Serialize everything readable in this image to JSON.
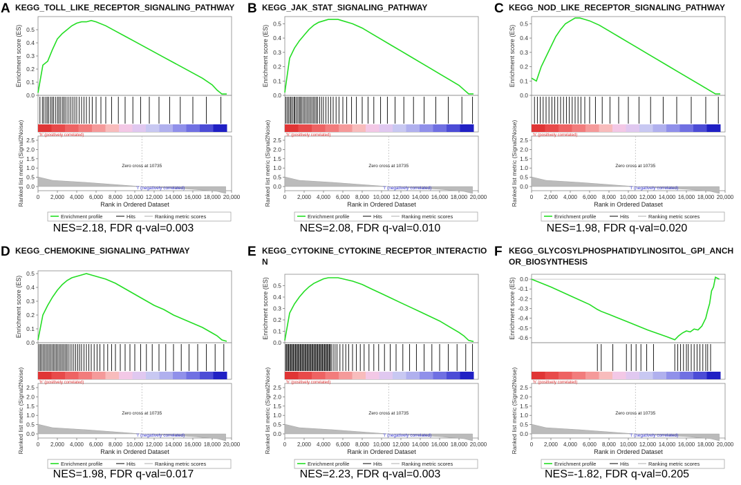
{
  "chart_data": [
    {
      "type": "line",
      "panel_label": "A",
      "title": "KEGG_TOLL_LIKE_RECEPTOR_SIGNALING_PATHWAY",
      "ylabel": "Enrichment score (ES)",
      "ylabel2": "Ranked list metric (Signal2Noise)",
      "xlabel": "Rank in Ordered Dataset",
      "ylim": [
        0.0,
        0.6
      ],
      "yticks": [
        "0.0",
        "0.1",
        "0.2",
        "0.3",
        "0.4",
        "0.5"
      ],
      "x": [
        0,
        500,
        1000,
        1500,
        2000,
        2500,
        3000,
        3500,
        4000,
        4500,
        5000,
        5500,
        6000,
        7000,
        8000,
        9000,
        10000,
        11000,
        12000,
        13000,
        14000,
        15000,
        16000,
        17000,
        18000,
        18500,
        19000,
        19500
      ],
      "es": [
        0.02,
        0.23,
        0.26,
        0.35,
        0.43,
        0.47,
        0.5,
        0.53,
        0.55,
        0.56,
        0.56,
        0.57,
        0.56,
        0.53,
        0.49,
        0.45,
        0.41,
        0.37,
        0.33,
        0.29,
        0.25,
        0.21,
        0.17,
        0.13,
        0.08,
        0.04,
        0.01,
        0.01
      ],
      "hits": [
        200,
        450,
        600,
        800,
        950,
        1100,
        1300,
        1450,
        1600,
        1800,
        2000,
        2150,
        2300,
        2500,
        2650,
        2800,
        3000,
        3200,
        3400,
        3600,
        3800,
        4000,
        4250,
        4500,
        4750,
        5000,
        5300,
        5600,
        6000,
        6500,
        7000,
        7600,
        8300,
        9000,
        9800,
        10600,
        11500,
        12500,
        13600,
        14700,
        16000,
        17400,
        18900
      ],
      "nes_fdr": "NES=2.18, FDR q-val=0.003"
    },
    {
      "type": "line",
      "panel_label": "B",
      "title": "KEGG_JAK_STAT_SIGNALING_PATHWAY",
      "ylabel": "Enrichment score (ES)",
      "ylabel2": "Ranked list metric (Signal2Noise)",
      "xlabel": "Rank in Ordered Dataset",
      "ylim": [
        0.0,
        0.55
      ],
      "yticks": [
        "0.0",
        "0.1",
        "0.2",
        "0.3",
        "0.4",
        "0.5"
      ],
      "x": [
        0,
        500,
        1000,
        1500,
        2000,
        2500,
        3000,
        3500,
        4000,
        4500,
        5000,
        5500,
        6000,
        7000,
        8000,
        9000,
        10000,
        11000,
        12000,
        13000,
        14000,
        15000,
        16000,
        17000,
        18000,
        18500,
        19000,
        19500
      ],
      "es": [
        0.02,
        0.26,
        0.33,
        0.38,
        0.42,
        0.46,
        0.49,
        0.51,
        0.52,
        0.53,
        0.53,
        0.53,
        0.52,
        0.5,
        0.47,
        0.43,
        0.39,
        0.35,
        0.31,
        0.27,
        0.23,
        0.19,
        0.15,
        0.11,
        0.07,
        0.04,
        0.01,
        0.01
      ],
      "hits": [
        100,
        250,
        400,
        550,
        650,
        800,
        950,
        1050,
        1200,
        1350,
        1500,
        1600,
        1750,
        1900,
        2050,
        2200,
        2350,
        2500,
        2650,
        2800,
        2950,
        3100,
        3250,
        3400,
        3600,
        3800,
        4000,
        4250,
        4500,
        4750,
        5000,
        5300,
        5600,
        6000,
        6400,
        6900,
        7400,
        8000,
        8600,
        9200,
        9900,
        10600,
        11400,
        12300,
        13300,
        14400,
        15600,
        16900,
        18300,
        19400
      ],
      "nes_fdr": "NES=2.08, FDR q-val=0.010"
    },
    {
      "type": "line",
      "panel_label": "C",
      "title": "KEGG_NOD_LIKE_RECEPTOR_SIGNALING_PATHWAY",
      "ylabel": "Enrichment score (ES)",
      "ylabel2": "Ranked list metric (Signal2Noise)",
      "xlabel": "Rank in Ordered Dataset",
      "ylim": [
        0.0,
        0.55
      ],
      "yticks": [
        "0.0",
        "0.1",
        "0.2",
        "0.3",
        "0.4",
        "0.5"
      ],
      "x": [
        0,
        500,
        1000,
        1500,
        2000,
        2500,
        3000,
        3500,
        4000,
        4500,
        5000,
        5500,
        6000,
        7000,
        8000,
        9000,
        10000,
        11000,
        12000,
        13000,
        14000,
        15000,
        16000,
        17000,
        18000,
        18500,
        19000,
        19500
      ],
      "es": [
        0.12,
        0.1,
        0.2,
        0.27,
        0.34,
        0.41,
        0.46,
        0.5,
        0.52,
        0.54,
        0.54,
        0.53,
        0.52,
        0.49,
        0.45,
        0.41,
        0.37,
        0.33,
        0.29,
        0.25,
        0.21,
        0.17,
        0.13,
        0.09,
        0.05,
        0.03,
        0.01,
        0.01
      ],
      "hits": [
        300,
        600,
        900,
        1200,
        1500,
        1800,
        2100,
        2400,
        2700,
        3000,
        3300,
        3600,
        3900,
        4200,
        4500,
        4800,
        5100,
        5500,
        6000,
        6600,
        7300,
        8100,
        9000,
        10000,
        11100,
        12300,
        13600,
        15000,
        16500,
        18000,
        19300
      ],
      "nes_fdr": "NES=1.98, FDR q-val=0.020"
    },
    {
      "type": "line",
      "panel_label": "D",
      "title": "KEGG_CHEMOKINE_SIGNALING_PATHWAY",
      "ylabel": "Enrichment score (ES)",
      "ylabel2": "Ranked list metric (Signal2Noise)",
      "xlabel": "Rank in Ordered Dataset",
      "ylim": [
        0.0,
        0.52
      ],
      "yticks": [
        "0.0",
        "0.1",
        "0.2",
        "0.3",
        "0.4",
        "0.5"
      ],
      "x": [
        0,
        500,
        1000,
        1500,
        2000,
        2500,
        3000,
        3500,
        4000,
        4500,
        5000,
        5500,
        6000,
        7000,
        8000,
        9000,
        10000,
        11000,
        12000,
        13000,
        14000,
        15000,
        16000,
        17000,
        18000,
        18500,
        19000,
        19500
      ],
      "es": [
        0.02,
        0.2,
        0.27,
        0.33,
        0.38,
        0.42,
        0.45,
        0.47,
        0.48,
        0.49,
        0.5,
        0.49,
        0.48,
        0.46,
        0.43,
        0.39,
        0.35,
        0.31,
        0.27,
        0.24,
        0.2,
        0.17,
        0.14,
        0.11,
        0.07,
        0.05,
        0.02,
        0.01
      ],
      "hits": [
        100,
        250,
        400,
        550,
        700,
        850,
        1000,
        1150,
        1300,
        1450,
        1600,
        1750,
        1900,
        2050,
        2200,
        2350,
        2500,
        2650,
        2800,
        2950,
        3100,
        3300,
        3500,
        3700,
        3900,
        4100,
        4300,
        4500,
        4750,
        5000,
        5250,
        5500,
        5800,
        6100,
        6400,
        6800,
        7200,
        7600,
        8000,
        8500,
        9000,
        9500,
        10000,
        10600,
        11200,
        11800,
        12500,
        13200,
        14000,
        14800,
        15600,
        16500,
        17400,
        18300,
        19200
      ],
      "nes_fdr": "NES=1.98, FDR q-val=0.017"
    },
    {
      "type": "line",
      "panel_label": "E",
      "title": "KEGG_CYTOKINE_CYTOKINE_RECEPTOR_INTERACTION",
      "ylabel": "Enrichment score (ES)",
      "ylabel2": "Ranked list metric (Signal2Noise)",
      "xlabel": "Rank in Ordered Dataset",
      "ylim": [
        0.0,
        0.6
      ],
      "yticks": [
        "0.0",
        "0.1",
        "0.2",
        "0.3",
        "0.4",
        "0.5"
      ],
      "x": [
        0,
        500,
        1000,
        1500,
        2000,
        2500,
        3000,
        3500,
        4000,
        4500,
        5000,
        5500,
        6000,
        7000,
        8000,
        9000,
        10000,
        11000,
        12000,
        13000,
        14000,
        15000,
        16000,
        17000,
        18000,
        18500,
        19000,
        19500
      ],
      "es": [
        0.02,
        0.26,
        0.34,
        0.4,
        0.45,
        0.49,
        0.52,
        0.54,
        0.56,
        0.57,
        0.57,
        0.57,
        0.56,
        0.54,
        0.51,
        0.47,
        0.43,
        0.39,
        0.35,
        0.31,
        0.27,
        0.23,
        0.19,
        0.14,
        0.09,
        0.06,
        0.02,
        0.01
      ],
      "hits": [
        100,
        200,
        300,
        400,
        500,
        600,
        700,
        800,
        900,
        1000,
        1100,
        1200,
        1300,
        1400,
        1500,
        1600,
        1700,
        1800,
        1900,
        2000,
        2100,
        2200,
        2300,
        2400,
        2500,
        2600,
        2700,
        2800,
        2900,
        3000,
        3100,
        3200,
        3300,
        3400,
        3500,
        3600,
        3700,
        3800,
        3900,
        4000,
        4100,
        4200,
        4300,
        4400,
        4500,
        4600,
        4700,
        4800,
        5000,
        5200,
        5400,
        5700,
        6000,
        6300,
        6600,
        7000,
        7400,
        7800,
        8200,
        8700,
        9200,
        9700,
        10300,
        10900,
        11500,
        12200,
        12900,
        13600,
        14400,
        15200,
        16000,
        16900,
        17800,
        18700,
        19400
      ],
      "nes_fdr": "NES=2.23, FDR q-val=0.003"
    },
    {
      "type": "line",
      "panel_label": "F",
      "title": "KEGG_GLYCOSYLPHOSPHATIDYLINOSITOL_GPI_ANCHOR_BIOSYNTHESIS",
      "ylabel": "Enrichment score (ES)",
      "ylabel2": "Ranked list metric (Signal2Noise)",
      "xlabel": "Rank in Ordered Dataset",
      "ylim": [
        -0.65,
        0.05
      ],
      "yticks": [
        "-0.6",
        "-0.5",
        "-0.4",
        "-0.3",
        "-0.2",
        "-0.1",
        "0.0"
      ],
      "x": [
        0,
        2000,
        4000,
        6000,
        6800,
        7200,
        8000,
        10000,
        12000,
        14000,
        14800,
        15200,
        15600,
        16000,
        16400,
        16800,
        17200,
        17600,
        18000,
        18200,
        18400,
        18600,
        18800,
        19000,
        19200,
        19400
      ],
      "es": [
        0.0,
        -0.08,
        -0.17,
        -0.26,
        -0.31,
        -0.33,
        -0.36,
        -0.44,
        -0.52,
        -0.59,
        -0.62,
        -0.58,
        -0.55,
        -0.53,
        -0.54,
        -0.51,
        -0.52,
        -0.48,
        -0.4,
        -0.32,
        -0.25,
        -0.12,
        -0.08,
        0.02,
        0.01,
        0.0
      ],
      "hits": [
        6800,
        7200,
        8400,
        9800,
        10300,
        10800,
        11300,
        11900,
        12600,
        14800,
        15100,
        15400,
        15700,
        16000,
        16200,
        16500,
        16800,
        17100,
        17400,
        17700,
        18000,
        18200,
        18500
      ],
      "nes_fdr": "NES=-1.82, FDR q-val=0.205"
    }
  ],
  "shared": {
    "xticks": [
      "0",
      "2,000",
      "4,000",
      "6,000",
      "8,000",
      "10,000",
      "12,000",
      "14,000",
      "16,000",
      "18,000",
      "20,000"
    ],
    "metric_yticks": [
      "0.0",
      "0.5",
      "1.0",
      "1.5",
      "2.0",
      "2.5"
    ],
    "pos_label": "'h' (positively correlated)",
    "neg_label": "'l' (negatively correlated)",
    "zero_cross": "Zero cross at 10735",
    "legend": [
      "Enrichment profile",
      "Hits",
      "Ranking metric scores"
    ],
    "colors": {
      "es_line": "#22dd22",
      "pos_text": "#e03030",
      "neg_text": "#3030d0",
      "metric_fill": "#bbbbbb"
    }
  }
}
